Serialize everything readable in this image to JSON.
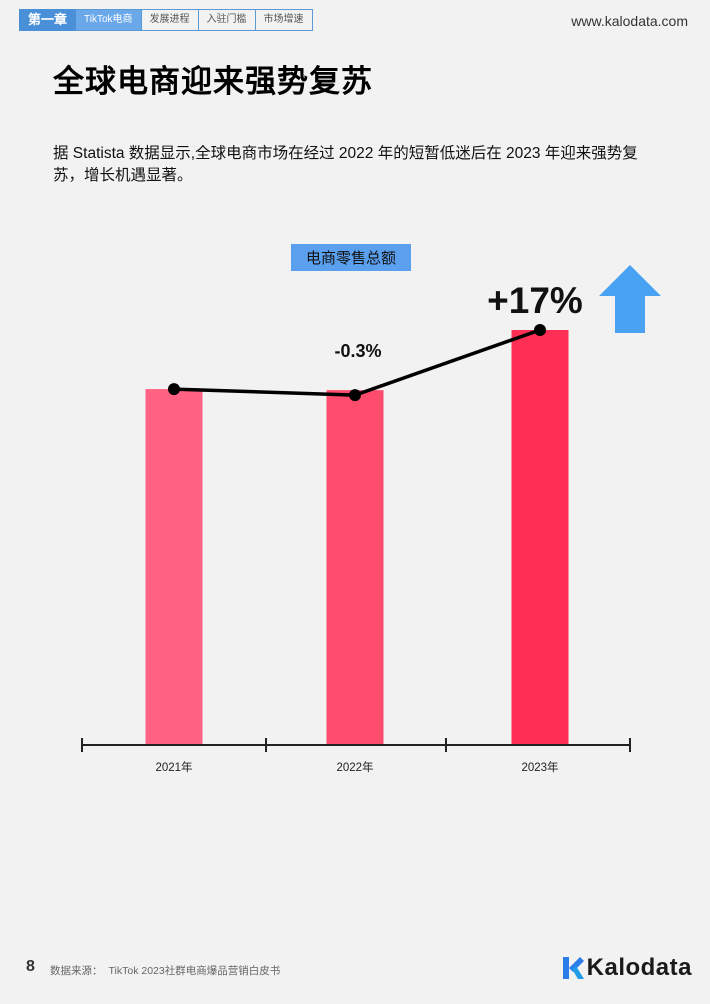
{
  "header": {
    "chapter": "第一章",
    "tabs": [
      "TikTok电商",
      "发展进程",
      "入驻门槛",
      "市场增速"
    ],
    "active_tab": 0,
    "site": "www.kalodata.com"
  },
  "page_title": "全球电商迎来强势复苏",
  "intro": "据 Statista 数据显示,全球电商市场在经过 2022 年的短暂低迷后在 2023 年迎来强势复苏，增长机遇显著。",
  "chart_data": {
    "type": "bar",
    "title": "电商零售总额",
    "categories": [
      "2021年",
      "2022年",
      "2023年"
    ],
    "values": [
      100,
      99.7,
      116.6
    ],
    "ylim": [
      0,
      120
    ],
    "growth_line": {
      "values": [
        100,
        99.7,
        116.6
      ],
      "labels": [
        "",
        "-0.3%",
        "+17%"
      ]
    },
    "bar_colors": [
      "#ff6283",
      "#ff4b6c",
      "#ff2e55"
    ],
    "trend_color": "#4aa3f2",
    "grid": false,
    "legend": "none"
  },
  "footer": {
    "page_number": "8",
    "source_label": "数据来源：",
    "source_text": "TikTok 2023社群电商爆品营销白皮书",
    "logo_text": "Kalodata"
  }
}
